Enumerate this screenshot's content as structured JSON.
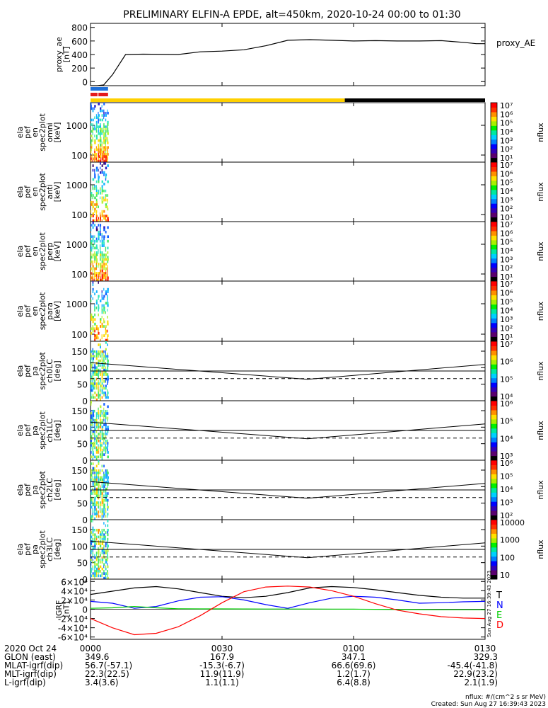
{
  "title": "PRELIMINARY ELFIN-A EPDE, alt=450km, 2020-10-24 00:00 to 01:30",
  "chart_data": {
    "type": "line",
    "title": "PRELIMINARY ELFIN-A EPDE, alt=450km, 2020-10-24 00:00 to 01:30",
    "time_range": [
      "00:00",
      "01:30"
    ],
    "x_ticks": [
      "0000",
      "0030",
      "0100",
      "0130"
    ],
    "x_tick_minutes": [
      0,
      30,
      60,
      90
    ],
    "panels": [
      {
        "type": "line",
        "ylabel": [
          "proxy_ae",
          "[nT]"
        ],
        "legend": "proxy_AE",
        "yticks": [
          "0",
          "200",
          "400",
          "600",
          "800"
        ],
        "ylim": [
          -60,
          860
        ],
        "series": [
          {
            "name": "proxy_AE",
            "color": "#000000",
            "x": [
              0,
              1.5,
              3,
              5,
              8,
              12,
              20,
              25,
              30,
              35,
              40,
              45,
              50,
              55,
              60,
              65,
              70,
              75,
              80,
              85,
              88,
              90
            ],
            "y": [
              -60,
              -60,
              -50,
              100,
              400,
              405,
              400,
              440,
              450,
              470,
              530,
              610,
              620,
              610,
              600,
              605,
              600,
              600,
              605,
              580,
              560,
              560
            ]
          }
        ]
      },
      {
        "type": "spectrogram",
        "ylabel": [
          "ela",
          "pef",
          "en",
          "spec2plot",
          "omni",
          "[keV]"
        ],
        "yticks": [
          "100",
          "1000"
        ],
        "colorbar_label": "nflux",
        "colorbar_ticks": [
          "10¹",
          "10²",
          "10³",
          "10⁴",
          "10⁵",
          "10⁶",
          "10⁷"
        ],
        "data_x_range": [
          0,
          4.2
        ]
      },
      {
        "type": "spectrogram",
        "ylabel": [
          "ela",
          "pef",
          "en",
          "spec2plot",
          "anti",
          "[keV]"
        ],
        "yticks": [
          "100",
          "1000"
        ],
        "colorbar_label": "nflux",
        "colorbar_ticks": [
          "10¹",
          "10²",
          "10³",
          "10⁴",
          "10⁵",
          "10⁶",
          "10⁷"
        ],
        "data_x_range": [
          0,
          4.2
        ]
      },
      {
        "type": "spectrogram",
        "ylabel": [
          "ela",
          "pef",
          "en",
          "spec2plot",
          "perp",
          "[keV]"
        ],
        "yticks": [
          "100",
          "1000"
        ],
        "colorbar_label": "nflux",
        "colorbar_ticks": [
          "10¹",
          "10²",
          "10³",
          "10⁴",
          "10⁵",
          "10⁶",
          "10⁷"
        ],
        "data_x_range": [
          0,
          4.2
        ]
      },
      {
        "type": "spectrogram",
        "ylabel": [
          "ela",
          "pef",
          "en",
          "spec2plot",
          "para",
          "[keV]"
        ],
        "yticks": [
          "100",
          "1000"
        ],
        "colorbar_label": "nflux",
        "colorbar_ticks": [
          "10¹",
          "10²",
          "10³",
          "10⁴",
          "10⁵",
          "10⁶",
          "10⁷"
        ],
        "data_x_range": [
          0,
          4.2
        ]
      },
      {
        "type": "spectrogram",
        "ylabel": [
          "ela",
          "pef",
          "pa",
          "spec2plot",
          "ch0LC",
          "[deg]"
        ],
        "yticks": [
          "0",
          "50",
          "100",
          "150"
        ],
        "colorbar_label": "nflux",
        "colorbar_ticks": [
          "10⁴",
          "10⁵",
          "10⁶",
          "10⁷"
        ],
        "data_x_range": [
          0,
          4.2
        ],
        "lines": {
          "solid_y": 90,
          "dashed_y": 67,
          "curve_y_start": 115,
          "curve_y_min": 65,
          "curve_y_end": 110,
          "curve_min_x": 49.5
        }
      },
      {
        "type": "spectrogram",
        "ylabel": [
          "ela",
          "pef",
          "pa",
          "spec2plot",
          "ch1LC",
          "[deg]"
        ],
        "yticks": [
          "0",
          "50",
          "100",
          "150"
        ],
        "colorbar_label": "nflux",
        "colorbar_ticks": [
          "10³",
          "10⁴",
          "10⁵",
          "10⁶"
        ],
        "data_x_range": [
          0,
          4.2
        ],
        "lines": {
          "solid_y": 90,
          "dashed_y": 67,
          "curve_y_start": 115,
          "curve_y_min": 65,
          "curve_y_end": 110,
          "curve_min_x": 49.5
        }
      },
      {
        "type": "spectrogram",
        "ylabel": [
          "ela",
          "pef",
          "pa",
          "spec2plot",
          "ch2LC",
          "[deg]"
        ],
        "yticks": [
          "0",
          "50",
          "100",
          "150"
        ],
        "colorbar_label": "nflux",
        "colorbar_ticks": [
          "10²",
          "10³",
          "10⁴",
          "10⁵",
          "10⁶"
        ],
        "data_x_range": [
          0,
          4.2
        ],
        "lines": {
          "solid_y": 90,
          "dashed_y": 67,
          "curve_y_start": 115,
          "curve_y_min": 65,
          "curve_y_end": 110,
          "curve_min_x": 49.5
        }
      },
      {
        "type": "spectrogram",
        "ylabel": [
          "ela",
          "pef",
          "pa",
          "spec2plot",
          "ch3LC",
          "[deg]"
        ],
        "yticks": [
          "0",
          "50",
          "100",
          "150"
        ],
        "colorbar_label": "nflux",
        "colorbar_ticks": [
          "10",
          "100",
          "1000",
          "10000"
        ],
        "data_x_range": [
          0,
          4.2
        ],
        "lines": {
          "solid_y": 90,
          "dashed_y": 67,
          "curve_y_start": 115,
          "curve_y_min": 65,
          "curve_y_end": 110,
          "curve_min_x": 49.5
        }
      },
      {
        "type": "line",
        "ylabel": [
          "IGRF",
          "[nT]"
        ],
        "yticks": [
          "-6×10⁴",
          "-4×10⁴",
          "-2×10⁴",
          "0",
          "2×10⁴",
          "4×10⁴",
          "6×10⁴"
        ],
        "ylim": [
          -65000,
          65000
        ],
        "legend": [
          {
            "label": "T",
            "color": "#000000"
          },
          {
            "label": "N",
            "color": "#0000ff"
          },
          {
            "label": "E",
            "color": "#00cc00"
          },
          {
            "label": "D",
            "color": "#ff0000"
          }
        ],
        "series": [
          {
            "name": "T",
            "color": "#000000",
            "x": [
              0,
              5,
              10,
              15,
              20,
              25,
              30,
              35,
              40,
              45,
              50,
              55,
              60,
              65,
              70,
              75,
              80,
              85,
              90
            ],
            "y": [
              32000,
              39000,
              46000,
              49000,
              44000,
              36000,
              28000,
              25000,
              28000,
              36000,
              46000,
              49000,
              47000,
              42000,
              36000,
              30000,
              26000,
              24000,
              24000
            ]
          },
          {
            "name": "N",
            "color": "#0000ff",
            "x": [
              0,
              5,
              10,
              15,
              20,
              25,
              30,
              35,
              40,
              45,
              50,
              55,
              60,
              65,
              70,
              75,
              80,
              85,
              90
            ],
            "y": [
              17000,
              13000,
              2000,
              6000,
              18000,
              26000,
              27000,
              20000,
              10000,
              2000,
              14000,
              24000,
              28000,
              26000,
              20000,
              13000,
              14000,
              16000,
              17000
            ]
          },
          {
            "name": "E",
            "color": "#00cc00",
            "x": [
              0,
              5,
              10,
              15,
              20,
              25,
              30,
              35,
              40,
              45,
              50,
              55,
              60,
              65,
              70,
              75,
              80,
              85,
              90
            ],
            "y": [
              2000,
              3000,
              6000,
              3000,
              1000,
              800,
              700,
              600,
              500,
              400,
              400,
              300,
              200,
              -200,
              -600,
              -800,
              -1000,
              -1000,
              -1000
            ]
          },
          {
            "name": "D",
            "color": "#ff0000",
            "x": [
              0,
              5,
              10,
              15,
              20,
              25,
              30,
              35,
              40,
              45,
              50,
              55,
              60,
              65,
              70,
              75,
              80,
              85,
              90
            ],
            "y": [
              -20000,
              -40000,
              -55000,
              -52000,
              -38000,
              -14000,
              14000,
              38000,
              48000,
              50000,
              48000,
              40000,
              28000,
              12000,
              -2000,
              -10000,
              -16000,
              -19000,
              -20000
            ]
          }
        ],
        "side_text": "Sun Aug 27 16:39:43 2023"
      }
    ],
    "status_bars": [
      {
        "segments": [
          {
            "from": 0,
            "to": 4,
            "color": "#1e6fd9"
          }
        ]
      },
      {
        "segments": [
          {
            "from": 0,
            "to": 1.6,
            "color": "#e41a1c"
          },
          {
            "from": 1.8,
            "to": 4,
            "color": "#e41a1c"
          }
        ]
      },
      {
        "segments": [
          {
            "from": 0,
            "to": 58,
            "color": "#ffd000"
          },
          {
            "from": 58,
            "to": 90,
            "color": "#000000"
          }
        ]
      }
    ]
  },
  "footer": {
    "row_labels": [
      "2020 Oct 24",
      "GLON (east)",
      "MLAT-igrf(dip)",
      "MLT-igrf(dip)",
      "L-igrf(dip)"
    ],
    "columns": [
      {
        "time": "0000",
        "values": [
          "349.6",
          "56.7(-57.1)",
          "22.3(22.5)",
          "3.4(3.6)"
        ]
      },
      {
        "time": "0030",
        "values": [
          "167.9",
          "-15.3(-6.7)",
          "11.9(11.9)",
          "1.1(1.1)"
        ]
      },
      {
        "time": "0100",
        "values": [
          "347.1",
          "66.6(69.6)",
          "1.2(1.7)",
          "6.4(8.8)"
        ]
      },
      {
        "time": "0130",
        "values": [
          "329.3",
          "-45.4(-41.8)",
          "22.9(23.2)",
          "2.1(1.9)"
        ]
      }
    ],
    "units_note": "nflux: #/(cm^2 s sr MeV)",
    "created": "Created: Sun Aug 27 16:39:43 2023"
  }
}
